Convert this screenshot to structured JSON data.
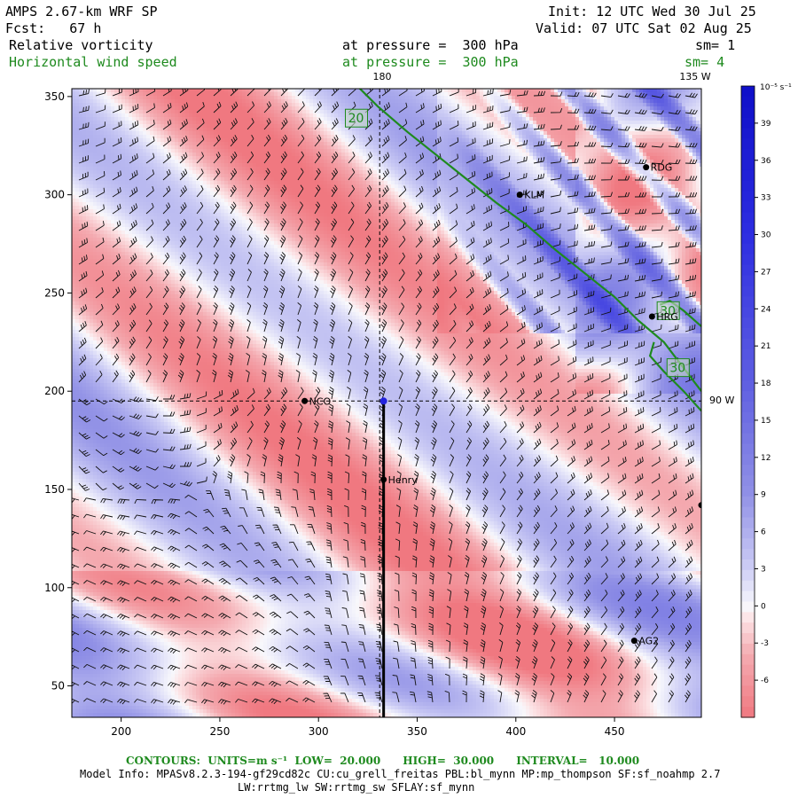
{
  "header": {
    "model": "AMPS 2.67-km WRF SP",
    "fcst": "Fcst:   67 h",
    "init": "Init: 12 UTC Wed 30 Jul 25",
    "valid": "Valid: 07 UTC Sat 02 Aug 25",
    "field1": "Relative vorticity",
    "field1_level": "at pressure =  300 hPa",
    "field1_sm": "sm= 1",
    "field2": "Horizontal wind speed",
    "field2_level": "at pressure =  300 hPa",
    "field2_sm": "sm= 4"
  },
  "footer": {
    "contours": "CONTOURS:  UNITS=m s⁻¹  LOW=  20.000      HIGH=  30.000      INTERVAL=   10.000",
    "model_info": "Model Info: MPASv8.2.3-194-gf29cd82c CU:cu_grell_freitas PBL:bl_mynn MP:mp_thompson SF:sf_noahmp 2.7",
    "model_info2": "LW:rrtmg_lw SW:rrtmg_sw SFLAY:sf_mynn"
  },
  "colors": {
    "positive": "#1a1adc",
    "negative": "#e0606a",
    "contour": "#1e8a1e"
  },
  "chart_data": {
    "type": "heatmap",
    "x_ticks": [
      200,
      250,
      300,
      350,
      400,
      450
    ],
    "y_ticks": [
      50,
      100,
      150,
      200,
      250,
      300,
      350
    ],
    "xlim": [
      175,
      494
    ],
    "ylim": [
      34,
      354
    ],
    "grid_lines": {
      "meridian_label": "180",
      "meridian_x": 331,
      "meridian_135_label": "135 W",
      "parallel_label": "90 W",
      "parallel_y": 195
    },
    "colorbar": {
      "unit_label": "10⁻⁵ s⁻¹",
      "levels": [
        39,
        36,
        33,
        30,
        27,
        24,
        21,
        18,
        15,
        12,
        9,
        6,
        3,
        0,
        -3,
        -6
      ],
      "vmin": -9,
      "vmax": 42
    },
    "stations": [
      {
        "name": "RDG",
        "x": 466,
        "y": 314
      },
      {
        "name": "KLM",
        "x": 402,
        "y": 300
      },
      {
        "name": "HRG",
        "x": 469,
        "y": 238
      },
      {
        "name": "NCO",
        "x": 293,
        "y": 195
      },
      {
        "name": "Henry",
        "x": 333,
        "y": 155
      },
      {
        "name": "AG2",
        "x": 460,
        "y": 73
      },
      {
        "name": "",
        "x": 494,
        "y": 142
      }
    ],
    "contour_labels": [
      {
        "text": "20",
        "x": 319,
        "y": 339
      },
      {
        "text": "30",
        "x": 477,
        "y": 241
      },
      {
        "text": "30",
        "x": 482,
        "y": 212
      }
    ],
    "contour_line_20": [
      [
        320,
        355
      ],
      [
        330,
        345
      ],
      [
        345,
        332
      ],
      [
        360,
        320
      ],
      [
        375,
        308
      ],
      [
        390,
        296
      ],
      [
        405,
        285
      ],
      [
        420,
        272
      ],
      [
        435,
        260
      ],
      [
        450,
        248
      ],
      [
        462,
        236
      ],
      [
        475,
        225
      ],
      [
        494,
        200
      ]
    ],
    "contour_line_30": [
      [
        473,
        244
      ],
      [
        478,
        246
      ],
      [
        485,
        241
      ],
      [
        494,
        233
      ]
    ],
    "contour_line_30b": [
      [
        470,
        225
      ],
      [
        468,
        218
      ],
      [
        475,
        210
      ],
      [
        485,
        200
      ],
      [
        494,
        190
      ]
    ],
    "cross_section": {
      "x": 333,
      "y_start": 34,
      "y_end": 195
    }
  }
}
